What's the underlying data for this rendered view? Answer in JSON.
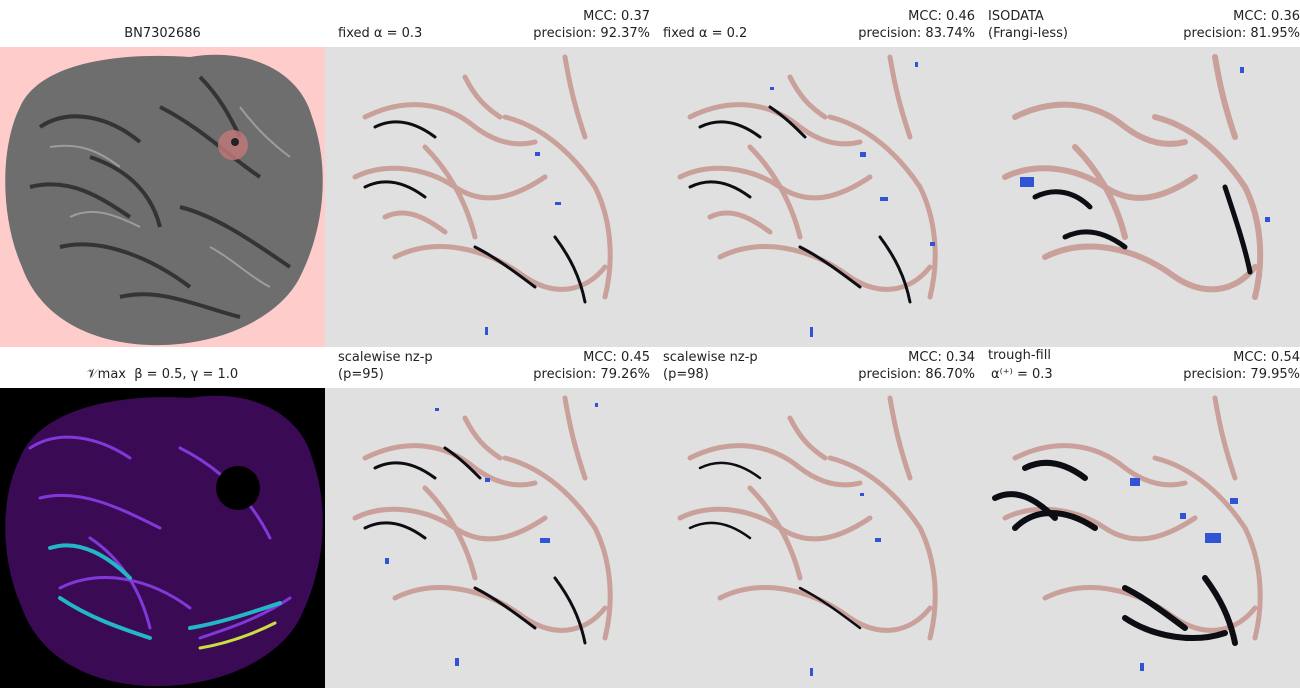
{
  "colors": {
    "vessel_truth": "#c9a09a",
    "predicted_overlap": "#0d0d14",
    "false_positive": "#2f55d6",
    "panel_background": "#e0e0e0",
    "mask_background": "#ffcccc",
    "map_background": "#000000"
  },
  "panels": [
    {
      "id": "sample",
      "title_center": "BN7302686"
    },
    {
      "id": "fixed-03",
      "title_left": "fixed α = 0.3",
      "mcc": "MCC: 0.37",
      "precision": "precision: 92.37%"
    },
    {
      "id": "fixed-02",
      "title_left": "fixed α = 0.2",
      "mcc": "MCC: 0.46",
      "precision": "precision: 83.74%"
    },
    {
      "id": "isodata",
      "title_left_line1": "ISODATA",
      "title_left_line2": "(Frangi-less)",
      "mcc": "MCC: 0.36",
      "precision": "precision: 81.95%"
    },
    {
      "id": "vmax",
      "title_center": "𝒱max  β = 0.5, γ = 1.0"
    },
    {
      "id": "nzp-95",
      "title_left_line1": "scalewise nz-p",
      "title_left_line2": "(p=95)",
      "mcc": "MCC: 0.45",
      "precision": "precision: 79.26%"
    },
    {
      "id": "nzp-98",
      "title_left_line1": "scalewise nz-p",
      "title_left_line2": "(p=98)",
      "mcc": "MCC: 0.34",
      "precision": "precision: 86.70%"
    },
    {
      "id": "trough-fill",
      "title_left_line1": "trough-fill",
      "title_left_line2": "α⁽⁺⁾ = 0.3",
      "mcc": "MCC: 0.54",
      "precision": "precision: 79.95%"
    }
  ]
}
